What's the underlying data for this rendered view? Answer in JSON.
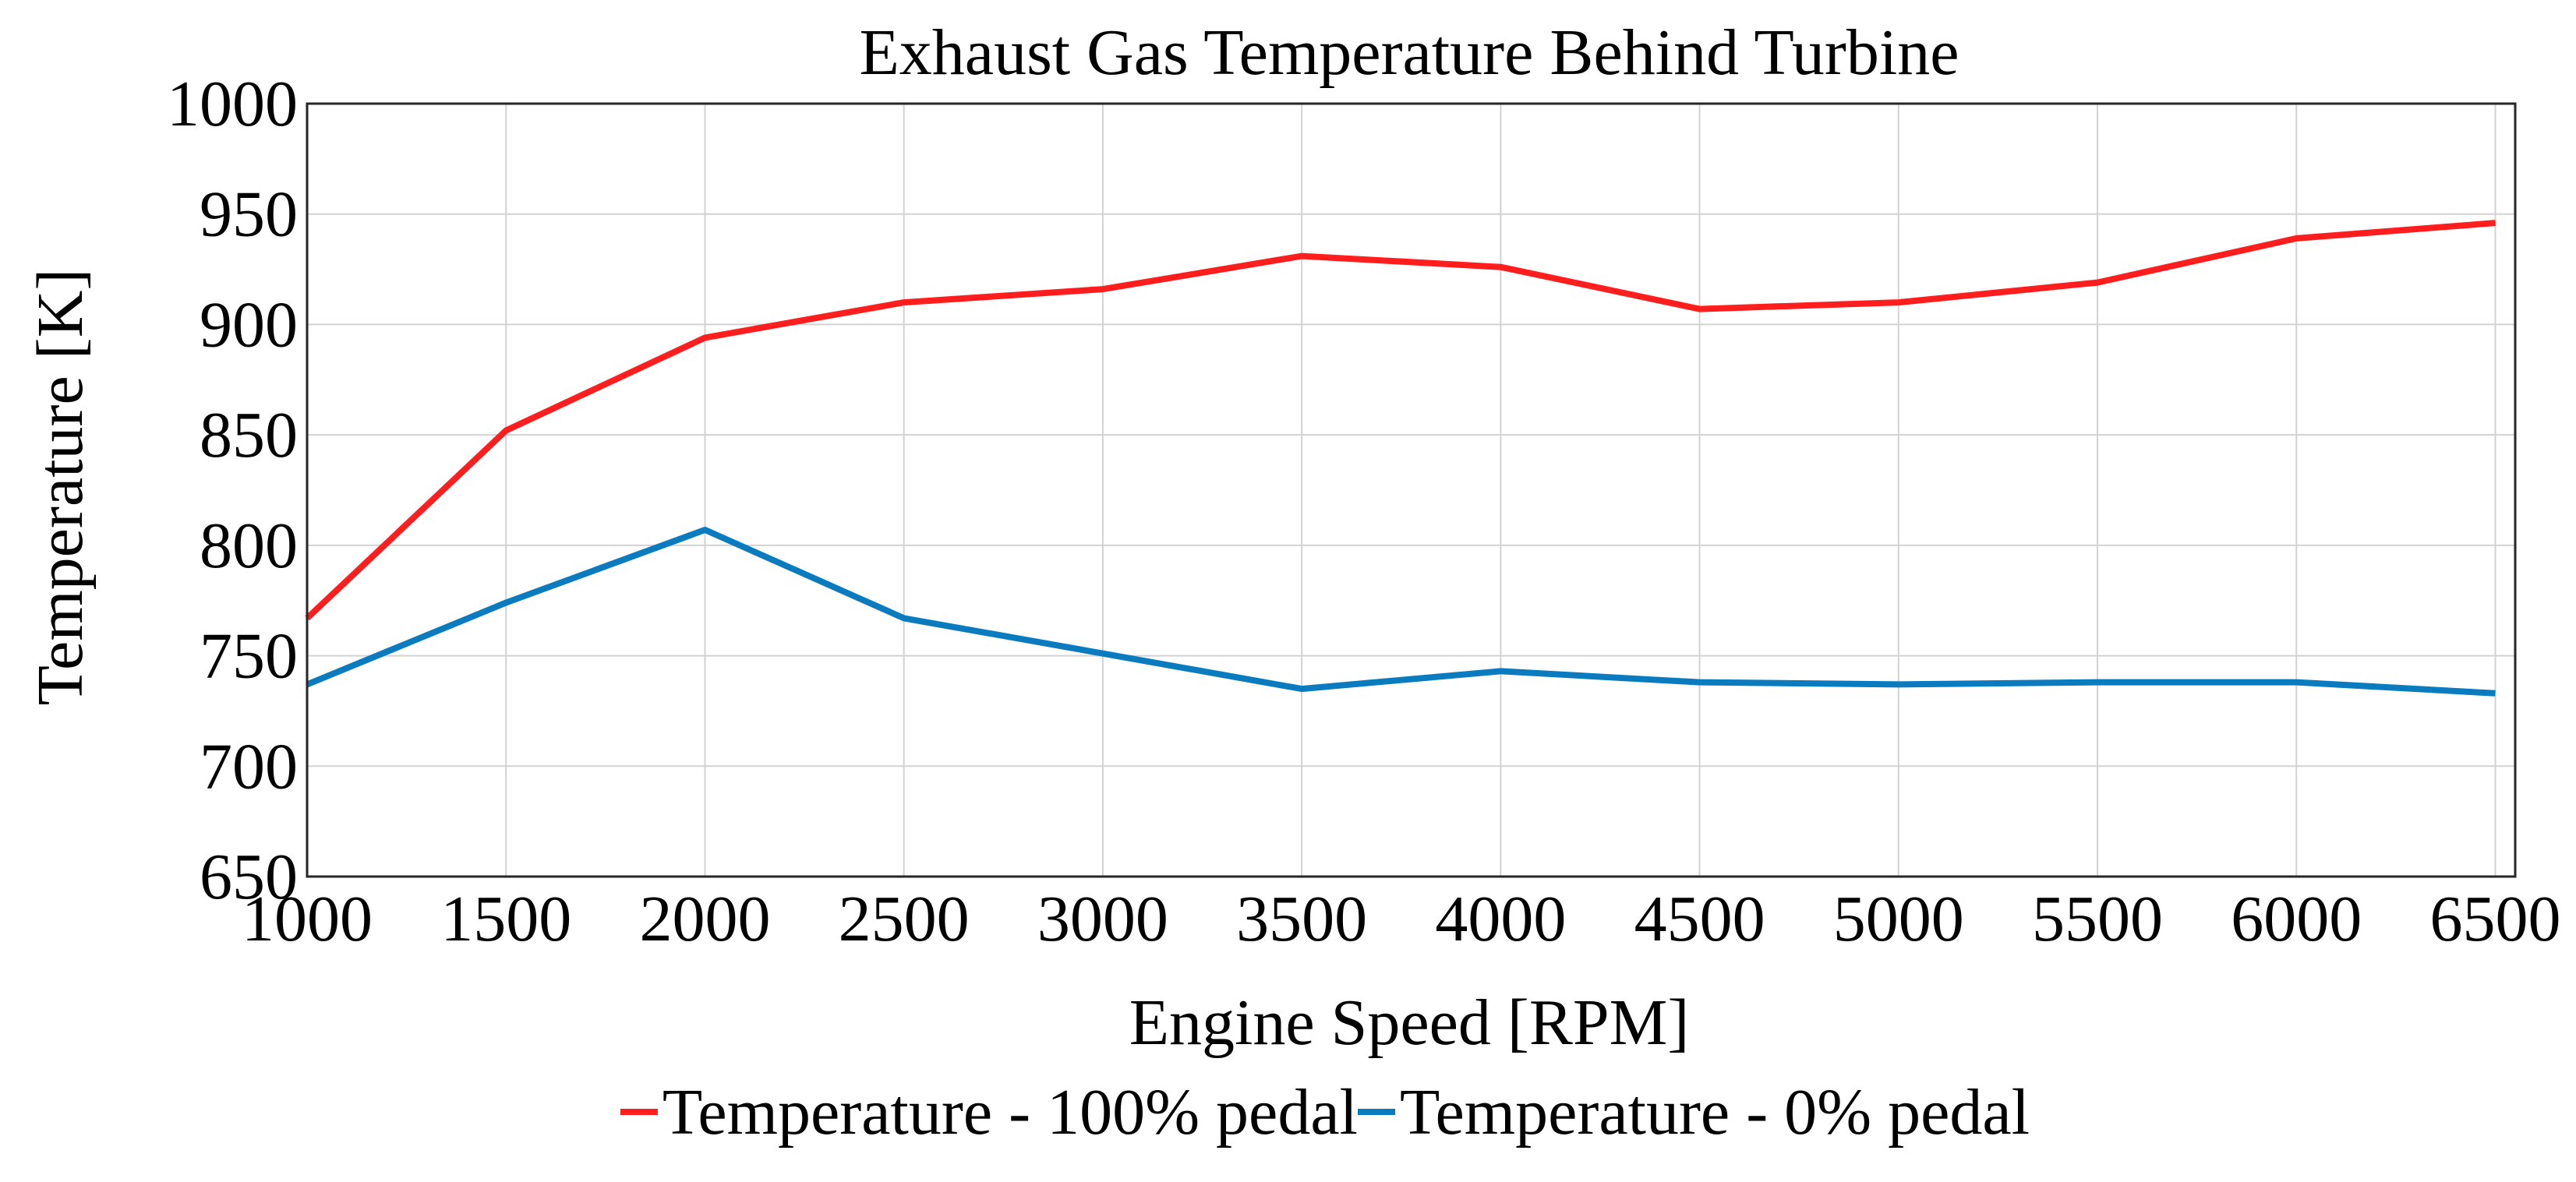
{
  "chart_data": {
    "type": "line",
    "title": "Exhaust Gas Temperature Behind Turbine",
    "xlabel": "Engine Speed [RPM]",
    "ylabel": "Temperature [K]",
    "xlim": [
      1000,
      6550
    ],
    "ylim": [
      650,
      1000
    ],
    "xticks": [
      1000,
      1500,
      2000,
      2500,
      3000,
      3500,
      4000,
      4500,
      5000,
      5500,
      6000,
      6500
    ],
    "yticks": [
      650,
      700,
      750,
      800,
      850,
      900,
      950,
      1000
    ],
    "x_tick_labels": [
      "1000",
      "1500",
      "2000",
      "2500",
      "3000",
      "3500",
      "4000",
      "4500",
      "5000",
      "5500",
      "6000",
      "6500"
    ],
    "y_tick_labels": [
      "650",
      "700",
      "750",
      "800",
      "850",
      "900",
      "950",
      "1000"
    ],
    "grid": true,
    "legend_position": "bottom-center",
    "x": [
      1000,
      1500,
      2000,
      2500,
      3000,
      3500,
      4000,
      4500,
      5000,
      5500,
      6000,
      6500
    ],
    "series": [
      {
        "name": "Temperature - 100% pedal",
        "color": "#ff1e1e",
        "values": [
          767,
          852,
          894,
          910,
          916,
          931,
          926,
          907,
          910,
          919,
          939,
          946
        ]
      },
      {
        "name": "Temperature - 0% pedal",
        "color": "#0b7bc0",
        "values": [
          737,
          774,
          807,
          767,
          751,
          735,
          743,
          738,
          737,
          738,
          738,
          733
        ]
      }
    ]
  }
}
